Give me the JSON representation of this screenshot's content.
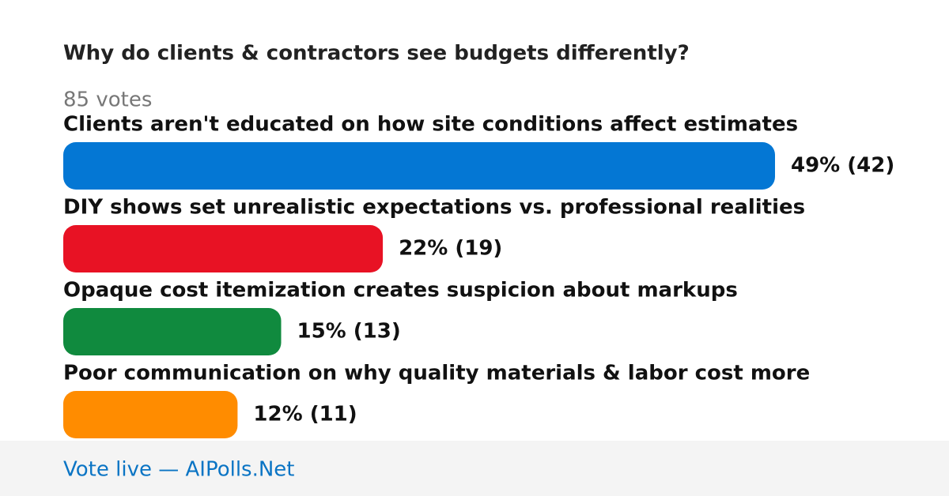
{
  "chart_data": {
    "type": "bar",
    "orientation": "horizontal",
    "title": "Why do clients & contractors see budgets differently?",
    "subtitle": "85 votes",
    "categories": [
      "Clients aren't educated on how site conditions affect estimates",
      "DIY shows set unrealistic expectations vs. professional realities",
      "Opaque cost itemization creates suspicion about markups",
      "Poor communication on why quality materials & labor cost more"
    ],
    "values": [
      49,
      22,
      15,
      12
    ],
    "value_labels": [
      "49% (42)",
      "22% (19)",
      "15% (13)",
      "12% (11)"
    ],
    "colors": [
      "#0477d4",
      "#e81224",
      "#108a3e",
      "#ff8c00"
    ]
  },
  "footer": {
    "link": "Vote live — AIPolls.Net"
  }
}
